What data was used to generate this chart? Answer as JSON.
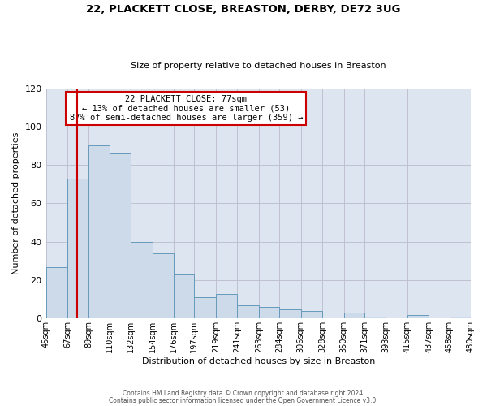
{
  "title": "22, PLACKETT CLOSE, BREASTON, DERBY, DE72 3UG",
  "subtitle": "Size of property relative to detached houses in Breaston",
  "xlabel": "Distribution of detached houses by size in Breaston",
  "ylabel": "Number of detached properties",
  "bar_edges": [
    45,
    67,
    89,
    110,
    132,
    154,
    176,
    197,
    219,
    241,
    263,
    284,
    306,
    328,
    350,
    371,
    393,
    415,
    437,
    458,
    480
  ],
  "bar_values": [
    27,
    73,
    90,
    86,
    40,
    34,
    23,
    11,
    13,
    7,
    6,
    5,
    4,
    0,
    3,
    1,
    0,
    2,
    0,
    1
  ],
  "bar_color": "#ccdaea",
  "bar_edge_color": "#6699bb",
  "grid_color": "#bbbbcc",
  "background_color": "#dde6f0",
  "vline_x": 77,
  "vline_color": "#cc0000",
  "annotation_box_text": "22 PLACKETT CLOSE: 77sqm\n← 13% of detached houses are smaller (53)\n87% of semi-detached houses are larger (359) →",
  "annotation_box_color": "#cc0000",
  "ylim": [
    0,
    120
  ],
  "yticks": [
    0,
    20,
    40,
    60,
    80,
    100,
    120
  ],
  "tick_labels": [
    "45sqm",
    "67sqm",
    "89sqm",
    "110sqm",
    "132sqm",
    "154sqm",
    "176sqm",
    "197sqm",
    "219sqm",
    "241sqm",
    "263sqm",
    "284sqm",
    "306sqm",
    "328sqm",
    "350sqm",
    "371sqm",
    "393sqm",
    "415sqm",
    "437sqm",
    "458sqm",
    "480sqm"
  ],
  "footnote1": "Contains HM Land Registry data © Crown copyright and database right 2024.",
  "footnote2": "Contains public sector information licensed under the Open Government Licence v3.0."
}
